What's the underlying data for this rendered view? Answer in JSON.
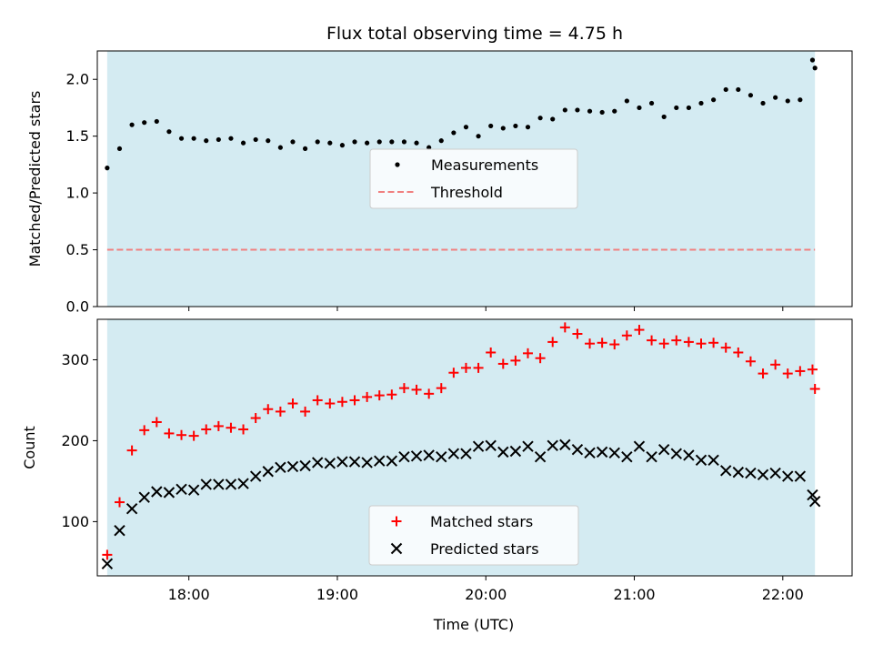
{
  "chart_data": [
    {
      "type": "scatter",
      "title": "Flux total observing time = 4.75 h",
      "xlabel": "",
      "ylabel": "Matched/Predicted stars",
      "xlim": [
        "17:23",
        "22:28"
      ],
      "ylim": [
        0,
        2.25
      ],
      "yticks": [
        "0.0",
        "0.5",
        "1.0",
        "1.5",
        "2.0"
      ],
      "observing_window": [
        "17:27",
        "22:13"
      ],
      "legend": {
        "placement": "center",
        "entries": [
          "Measurements",
          "Threshold"
        ]
      },
      "threshold": {
        "name": "Threshold",
        "value": 0.5,
        "color": "#f08080"
      },
      "series": [
        {
          "name": "Measurements",
          "marker": "dot",
          "color": "#000000",
          "x": [
            "17:27",
            "17:32",
            "17:37",
            "17:42",
            "17:47",
            "17:52",
            "17:57",
            "18:02",
            "18:07",
            "18:12",
            "18:17",
            "18:22",
            "18:27",
            "18:32",
            "18:37",
            "18:42",
            "18:47",
            "18:52",
            "18:57",
            "19:02",
            "19:07",
            "19:12",
            "19:17",
            "19:22",
            "19:27",
            "19:32",
            "19:37",
            "19:42",
            "19:47",
            "19:52",
            "19:57",
            "20:02",
            "20:07",
            "20:12",
            "20:17",
            "20:22",
            "20:27",
            "20:32",
            "20:37",
            "20:42",
            "20:47",
            "20:52",
            "20:57",
            "21:02",
            "21:07",
            "21:12",
            "21:17",
            "21:22",
            "21:27",
            "21:32",
            "21:37",
            "21:42",
            "21:47",
            "21:52",
            "21:57",
            "22:02",
            "22:07",
            "22:12"
          ],
          "values": [
            1.22,
            1.39,
            1.6,
            1.62,
            1.63,
            1.54,
            1.48,
            1.48,
            1.46,
            1.47,
            1.48,
            1.44,
            1.47,
            1.46,
            1.4,
            1.45,
            1.39,
            1.45,
            1.44,
            1.42,
            1.45,
            1.44,
            1.45,
            1.45,
            1.45,
            1.44,
            1.4,
            1.46,
            1.53,
            1.58,
            1.5,
            1.59,
            1.57,
            1.59,
            1.58,
            1.66,
            1.65,
            1.73,
            1.73,
            1.72,
            1.71,
            1.72,
            1.81,
            1.75,
            1.79,
            1.67,
            1.75,
            1.75,
            1.79,
            1.82,
            1.91,
            1.91,
            1.86,
            1.79,
            1.84,
            1.81,
            1.82,
            2.17
          ]
        }
      ],
      "extra_point": {
        "x": "22:13",
        "value": 2.1
      }
    },
    {
      "type": "scatter",
      "title": "",
      "xlabel": "Time (UTC)",
      "ylabel": "Count",
      "xlim": [
        "17:23",
        "22:28"
      ],
      "ylim": [
        33,
        350
      ],
      "yticks": [
        "100",
        "200",
        "300"
      ],
      "xticks": [
        "18:00",
        "19:00",
        "20:00",
        "21:00",
        "22:00"
      ],
      "observing_window": [
        "17:27",
        "22:13"
      ],
      "legend": {
        "placement": "lower center",
        "entries": [
          "Matched stars",
          "Predicted stars"
        ]
      },
      "series": [
        {
          "name": "Matched stars",
          "marker": "plus",
          "color": "#ff0000",
          "x": [
            "17:27",
            "17:32",
            "17:37",
            "17:42",
            "17:47",
            "17:52",
            "17:57",
            "18:02",
            "18:07",
            "18:12",
            "18:17",
            "18:22",
            "18:27",
            "18:32",
            "18:37",
            "18:42",
            "18:47",
            "18:52",
            "18:57",
            "19:02",
            "19:07",
            "19:12",
            "19:17",
            "19:22",
            "19:27",
            "19:32",
            "19:37",
            "19:42",
            "19:47",
            "19:52",
            "19:57",
            "20:02",
            "20:07",
            "20:12",
            "20:17",
            "20:22",
            "20:27",
            "20:32",
            "20:37",
            "20:42",
            "20:47",
            "20:52",
            "20:57",
            "21:02",
            "21:07",
            "21:12",
            "21:17",
            "21:22",
            "21:27",
            "21:32",
            "21:37",
            "21:42",
            "21:47",
            "21:52",
            "21:57",
            "22:02",
            "22:07",
            "22:12"
          ],
          "values": [
            59,
            124,
            188,
            213,
            223,
            209,
            207,
            206,
            214,
            218,
            216,
            214,
            228,
            239,
            236,
            246,
            236,
            250,
            246,
            248,
            250,
            254,
            256,
            257,
            265,
            263,
            258,
            265,
            284,
            290,
            290,
            309,
            295,
            299,
            308,
            302,
            322,
            340,
            332,
            320,
            321,
            319,
            330,
            337,
            324,
            320,
            324,
            322,
            320,
            321,
            315,
            309,
            298,
            283,
            294,
            283,
            286,
            288
          ]
        },
        {
          "name": "Predicted stars",
          "marker": "x",
          "color": "#000000",
          "x": [
            "17:27",
            "17:32",
            "17:37",
            "17:42",
            "17:47",
            "17:52",
            "17:57",
            "18:02",
            "18:07",
            "18:12",
            "18:17",
            "18:22",
            "18:27",
            "18:32",
            "18:37",
            "18:42",
            "18:47",
            "18:52",
            "18:57",
            "19:02",
            "19:07",
            "19:12",
            "19:17",
            "19:22",
            "19:27",
            "19:32",
            "19:37",
            "19:42",
            "19:47",
            "19:52",
            "19:57",
            "20:02",
            "20:07",
            "20:12",
            "20:17",
            "20:22",
            "20:27",
            "20:32",
            "20:37",
            "20:42",
            "20:47",
            "20:52",
            "20:57",
            "21:02",
            "21:07",
            "21:12",
            "21:17",
            "21:22",
            "21:27",
            "21:32",
            "21:37",
            "21:42",
            "21:47",
            "21:52",
            "21:57",
            "22:02",
            "22:07",
            "22:12"
          ],
          "values": [
            48,
            89,
            116,
            130,
            137,
            136,
            140,
            139,
            146,
            146,
            146,
            147,
            156,
            162,
            167,
            168,
            169,
            173,
            172,
            174,
            174,
            173,
            175,
            175,
            180,
            181,
            182,
            180,
            184,
            184,
            193,
            194,
            186,
            187,
            193,
            180,
            194,
            195,
            189,
            185,
            186,
            185,
            180,
            193,
            180,
            189,
            184,
            182,
            176,
            176,
            163,
            161,
            160,
            158,
            160,
            156,
            156,
            133
          ]
        }
      ],
      "extra_points": [
        {
          "series": "Matched stars",
          "x": "22:13",
          "value": 264
        },
        {
          "series": "Predicted stars",
          "x": "22:13",
          "value": 125
        }
      ]
    }
  ],
  "colors": {
    "observing_band": "#add8e6",
    "matched": "#ff0000",
    "predicted": "#000000",
    "measurement": "#000000",
    "threshold": "#f08080"
  }
}
